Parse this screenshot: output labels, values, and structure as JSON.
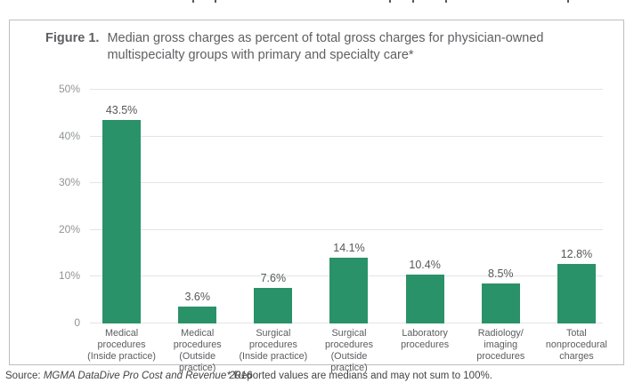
{
  "figure": {
    "label": "Figure 1.",
    "title_line1": "Median gross charges as percent of total gross charges for physician-owned",
    "title_line2": "multispecialty groups with primary and specialty care*"
  },
  "chart_data": {
    "type": "bar",
    "title": "Median gross charges as percent of total gross charges for physician-owned multispecialty groups with primary and specialty care*",
    "categories": [
      [
        "Medical",
        "procedures",
        "(Inside practice)"
      ],
      [
        "Medical",
        "procedures",
        "(Outside practice)"
      ],
      [
        "Surgical",
        "procedures",
        "(Inside practice)"
      ],
      [
        "Surgical",
        "procedures",
        "(Outside practice)"
      ],
      [
        "Laboratory",
        "procedures"
      ],
      [
        "Radiology/",
        "imaging",
        "procedures"
      ],
      [
        "Total",
        "nonprocedural",
        "charges"
      ]
    ],
    "values": [
      43.5,
      3.6,
      7.6,
      14.1,
      10.4,
      8.5,
      12.8
    ],
    "value_labels": [
      "43.5%",
      "3.6%",
      "7.6%",
      "14.1%",
      "10.4%",
      "8.5%",
      "12.8%"
    ],
    "y_ticks": [
      {
        "label": "50%",
        "value": 50
      },
      {
        "label": "40%",
        "value": 40
      },
      {
        "label": "30%",
        "value": 30
      },
      {
        "label": "20%",
        "value": 20
      },
      {
        "label": "10%",
        "value": 10
      },
      {
        "label": "0",
        "value": 0
      }
    ],
    "ylim": [
      0,
      50
    ],
    "grid": true,
    "legend": "none",
    "bar_color": "#2a9268"
  },
  "footer": {
    "source_label": "Source:",
    "source_citation": "MGMA DataDive Pro Cost and Revenue 2016",
    "footnote": "* Reported values are medians and may not sum to 100%."
  }
}
